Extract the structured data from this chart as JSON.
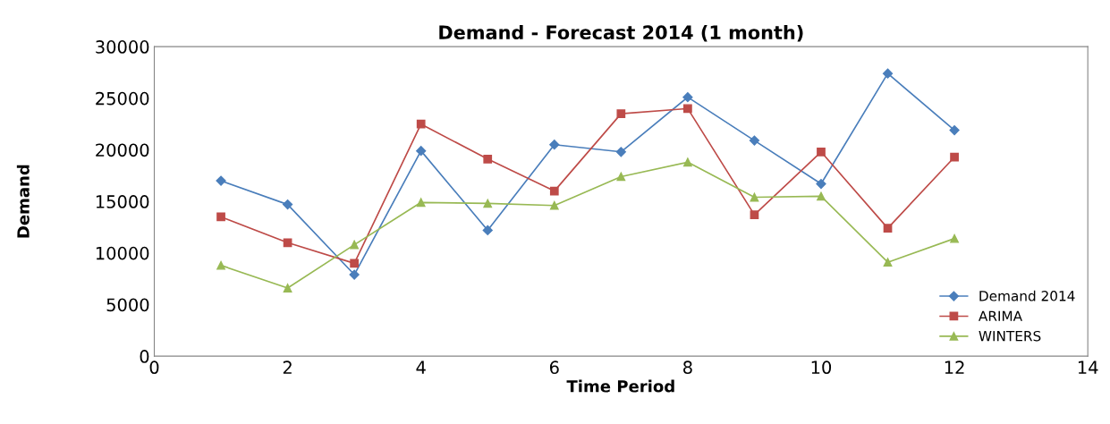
{
  "chart_data": {
    "type": "line",
    "title": "Demand - Forecast 2014 (1 month)",
    "xlabel": "Time Period",
    "ylabel": "Demand",
    "x": [
      1,
      2,
      3,
      4,
      5,
      6,
      7,
      8,
      9,
      10,
      11,
      12
    ],
    "series": [
      {
        "name": "Demand 2014",
        "color": "#4a7ebb",
        "marker": "diamond",
        "values": [
          17000,
          14700,
          7900,
          19900,
          12200,
          20500,
          19800,
          25100,
          20900,
          16700,
          27400,
          21900
        ]
      },
      {
        "name": "ARIMA",
        "color": "#be4b48",
        "marker": "square",
        "values": [
          13500,
          11000,
          9000,
          22500,
          19100,
          16000,
          23500,
          24000,
          13700,
          19800,
          12400,
          19300
        ]
      },
      {
        "name": "WINTERS",
        "color": "#98b954",
        "marker": "triangle",
        "values": [
          8800,
          6600,
          10800,
          14900,
          14800,
          14600,
          17400,
          18800,
          15400,
          15500,
          9100,
          11400
        ]
      }
    ],
    "xlim": [
      0,
      14
    ],
    "xticks": [
      0,
      2,
      4,
      6,
      8,
      10,
      12,
      14
    ],
    "ylim": [
      0,
      30000
    ],
    "yticks": [
      0,
      5000,
      10000,
      15000,
      20000,
      25000,
      30000
    ],
    "grid": false,
    "legend": "bottom right",
    "line_style": "solid"
  }
}
